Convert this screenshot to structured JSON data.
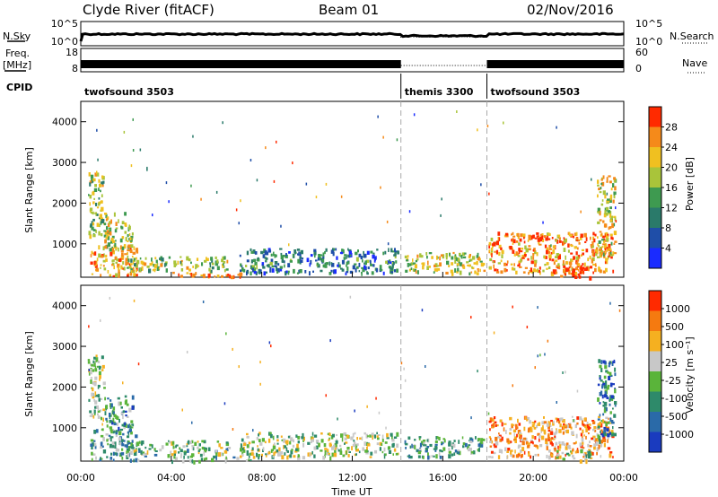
{
  "header": {
    "station": "Clyde River (fitACF)",
    "beam": "Beam 01",
    "date": "02/Nov/2016"
  },
  "aux": {
    "nsky_label": "N.Sky",
    "nsearch_label": "N.Search",
    "noise_left_ticks": [
      "10^5",
      "10^0"
    ],
    "noise_right_ticks": [
      "10^5",
      "10^0"
    ],
    "freq_label": "Freq.",
    "freq_unit": "[MHz]",
    "freq_ticks": [
      "18",
      "8"
    ],
    "nave_label": "Nave",
    "nave_ticks": [
      "60",
      "0"
    ],
    "cpid_label": "CPID",
    "cpid_segments": [
      {
        "label": "twofsound 3503",
        "start_hour": 0.0,
        "end_hour": 14.15
      },
      {
        "label": "themis 3300",
        "start_hour": 14.15,
        "end_hour": 17.95
      },
      {
        "label": "twofsound 3503",
        "start_hour": 17.95,
        "end_hour": 24.0
      }
    ]
  },
  "chart_data": [
    {
      "type": "heatmap",
      "panel": "power",
      "ylabel": "Slant Range [km]",
      "ylim": [
        180,
        4500
      ],
      "yticks": [
        "1000",
        "2000",
        "3000",
        "4000"
      ],
      "xlim_hours": [
        0,
        24
      ],
      "colorbar_label": "Power [dB]",
      "colorbar_ticks": [
        "28",
        "24",
        "20",
        "16",
        "12",
        "8",
        "4"
      ],
      "colorscale": [
        "#1a2bff",
        "#1f4ea8",
        "#2a7a6a",
        "#3e9a50",
        "#a9c43a",
        "#f0c020",
        "#f58a1a",
        "#ff2a00"
      ],
      "scatter_regions": [
        {
          "t": [
            0.3,
            1.0
          ],
          "r": [
            1200,
            2800
          ],
          "level": 0.55
        },
        {
          "t": [
            0.4,
            2.5
          ],
          "r": [
            220,
            1000
          ],
          "level": 0.75
        },
        {
          "t": [
            1.0,
            2.3
          ],
          "r": [
            900,
            1800
          ],
          "level": 0.6
        },
        {
          "t": [
            2.0,
            6.5
          ],
          "r": [
            350,
            700
          ],
          "level": 0.55
        },
        {
          "t": [
            4.0,
            7.5
          ],
          "r": [
            200,
            320
          ],
          "level": 0.85
        },
        {
          "t": [
            7.0,
            14.0
          ],
          "r": [
            300,
            900
          ],
          "level": 0.3
        },
        {
          "t": [
            14.3,
            17.8
          ],
          "r": [
            300,
            800
          ],
          "level": 0.6
        },
        {
          "t": [
            18.0,
            23.5
          ],
          "r": [
            300,
            1300
          ],
          "level": 0.8
        },
        {
          "t": [
            21.0,
            22.5
          ],
          "r": [
            200,
            500
          ],
          "level": 0.95
        },
        {
          "t": [
            22.8,
            23.6
          ],
          "r": [
            700,
            2700
          ],
          "level": 0.65
        }
      ]
    },
    {
      "type": "heatmap",
      "panel": "velocity",
      "ylabel": "Slant Range [km]",
      "ylim": [
        180,
        4500
      ],
      "yticks": [
        "1000",
        "2000",
        "3000",
        "4000"
      ],
      "xlabel": "Time UT",
      "xticks": [
        "00:00",
        "04:00",
        "08:00",
        "12:00",
        "16:00",
        "20:00",
        "00:00"
      ],
      "xlim_hours": [
        0,
        24
      ],
      "colorbar_label": "Velocity [m s⁻¹]",
      "colorbar_ticks": [
        "1000",
        "500",
        "100",
        "25",
        "-25",
        "-100",
        "-500",
        "-1000"
      ],
      "colorscale": [
        "#1a3bbf",
        "#2a6aa8",
        "#2e8a6a",
        "#5ab43a",
        "#c8c8c8",
        "#f5b020",
        "#f57a10",
        "#ff2a00"
      ],
      "scatter_regions": [
        {
          "t": [
            0.3,
            1.0
          ],
          "r": [
            1200,
            2800
          ],
          "level": 0.5
        },
        {
          "t": [
            0.4,
            2.5
          ],
          "r": [
            220,
            1000
          ],
          "level": 0.35
        },
        {
          "t": [
            1.0,
            2.3
          ],
          "r": [
            900,
            1800
          ],
          "level": 0.3
        },
        {
          "t": [
            2.0,
            6.5
          ],
          "r": [
            350,
            700
          ],
          "level": 0.45
        },
        {
          "t": [
            4.0,
            7.5
          ],
          "r": [
            200,
            320
          ],
          "level": 0.4
        },
        {
          "t": [
            7.0,
            14.0
          ],
          "r": [
            300,
            900
          ],
          "level": 0.5
        },
        {
          "t": [
            14.3,
            17.8
          ],
          "r": [
            300,
            800
          ],
          "level": 0.35
        },
        {
          "t": [
            18.0,
            23.5
          ],
          "r": [
            300,
            1300
          ],
          "level": 0.75
        },
        {
          "t": [
            21.0,
            22.5
          ],
          "r": [
            200,
            500
          ],
          "level": 0.55
        },
        {
          "t": [
            22.8,
            23.6
          ],
          "r": [
            700,
            2700
          ],
          "level": 0.25
        }
      ]
    }
  ]
}
